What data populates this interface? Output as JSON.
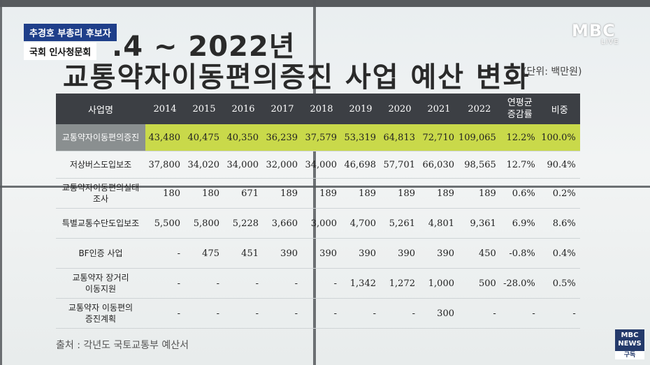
{
  "caption": {
    "line1": "추경호 부총리 후보자",
    "line2": "국회 인사청문회"
  },
  "logo": {
    "text": "MBC",
    "live": "LIVE"
  },
  "title": {
    "line1": ".4 ~ 2022년",
    "line2": "교통약자이동편의증진 사업 예산 변화",
    "unit": "(단위: 백만원)"
  },
  "table": {
    "headers": [
      "사업명",
      "2014",
      "2015",
      "2016",
      "2017",
      "2018",
      "2019",
      "2020",
      "2021",
      "2022",
      "연평균\n증감률",
      "비중"
    ],
    "rows": [
      {
        "name": "교통약자이동편의증진",
        "cells": [
          "43,480",
          "40,475",
          "40,350",
          "36,239",
          "37,579",
          "53,319",
          "64,813",
          "72,710",
          "109,065",
          "12.2%",
          "100.0%"
        ]
      },
      {
        "name": "저상버스도입보조",
        "cells": [
          "37,800",
          "34,020",
          "34,000",
          "32,000",
          "34,000",
          "46,698",
          "57,701",
          "66,030",
          "98,565",
          "12.7%",
          "90.4%"
        ]
      },
      {
        "name": "교통약자이동편의실태\n조사",
        "cells": [
          "180",
          "180",
          "671",
          "189",
          "189",
          "189",
          "189",
          "189",
          "189",
          "0.6%",
          "0.2%"
        ]
      },
      {
        "name": "특별교통수단도입보조",
        "cells": [
          "5,500",
          "5,800",
          "5,228",
          "3,660",
          "3,000",
          "4,700",
          "5,261",
          "4,801",
          "9,361",
          "6.9%",
          "8.6%"
        ]
      },
      {
        "name": "BF인증 사업",
        "cells": [
          "-",
          "475",
          "451",
          "390",
          "390",
          "390",
          "390",
          "390",
          "450",
          "-0.8%",
          "0.4%"
        ]
      },
      {
        "name": "교통약자 장거리\n이동지원",
        "cells": [
          "-",
          "-",
          "-",
          "-",
          "-",
          "1,342",
          "1,272",
          "1,000",
          "500",
          "-28.0%",
          "0.5%"
        ]
      },
      {
        "name": "교통약자 이동편의\n증진계획",
        "cells": [
          "-",
          "-",
          "-",
          "-",
          "-",
          "-",
          "-",
          "300",
          "-",
          "-",
          "-"
        ]
      }
    ]
  },
  "source": "출처 : 각년도 국토교통부 예산서",
  "badge": {
    "line1": "MBC",
    "line2": "NEWS",
    "sub": "구독"
  }
}
